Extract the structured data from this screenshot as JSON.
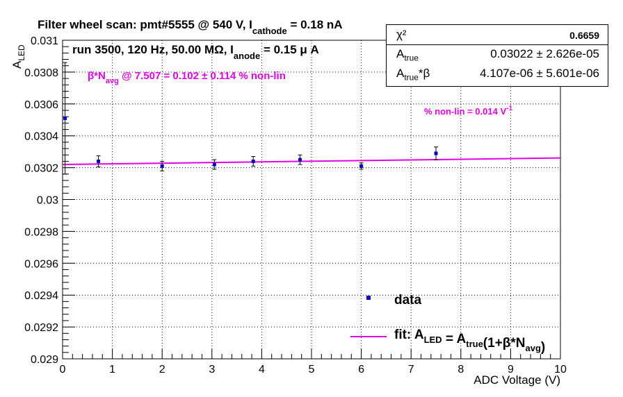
{
  "title": {
    "prefix": "Filter wheel scan: pmt#5555 @   540 V, I",
    "sub": "cathode",
    "suffix": " = 0.18 nA"
  },
  "run_info": {
    "prefix": "run 3500, 120 Hz, 50.00 MΩ, I",
    "sub": "anode",
    "suffix": " = 0.15 μ A"
  },
  "nonlin_note": {
    "prefix": "β*N",
    "sub": "avg",
    "suffix": " @ 7.507 = 0.102 ± 0.114 % non-lin"
  },
  "slope_note": {
    "prefix": "% non-lin = 0.014 V",
    "sup": "-1"
  },
  "stats": {
    "chi2_label": "χ²",
    "chi2_value": "0.6659",
    "atrue_label": "A",
    "atrue_sub": "true",
    "atrue_value": "0.03022 ± 2.626e-05",
    "beta_label": "A",
    "beta_sub": "true",
    "beta_suffix": "*β",
    "beta_value": "4.107e-06 ± 5.601e-06"
  },
  "colors": {
    "data": "#0000cc",
    "fit": "#e600e6",
    "note": "#e600e6",
    "grid": "#000000"
  },
  "chart_data": {
    "type": "scatter",
    "xlabel": "ADC Voltage (V)",
    "ylabel": "A",
    "ylabel_sub": "LED",
    "xlim": [
      0,
      10
    ],
    "ylim": [
      0.029,
      0.031
    ],
    "x_ticks": [
      "0",
      "1",
      "2",
      "3",
      "4",
      "5",
      "6",
      "7",
      "8",
      "9",
      "10"
    ],
    "y_ticks": [
      "0.029",
      "0.0292",
      "0.0294",
      "0.0296",
      "0.0298",
      "0.03",
      "0.0302",
      "0.0304",
      "0.0306",
      "0.0308",
      "0.031"
    ],
    "grid": true,
    "legend": {
      "position": "bottom-right",
      "data_label": "data",
      "fit_label": "fit: A_LED = A_true(1+β*N_avg)"
    },
    "series": [
      {
        "name": "data",
        "points": [
          {
            "x": 0.05,
            "y": 0.03051,
            "err": 0.00035
          },
          {
            "x": 0.72,
            "y": 0.03024,
            "err": 3.5e-05
          },
          {
            "x": 2.0,
            "y": 0.03021,
            "err": 3e-05
          },
          {
            "x": 3.05,
            "y": 0.03022,
            "err": 3e-05
          },
          {
            "x": 3.83,
            "y": 0.03024,
            "err": 3e-05
          },
          {
            "x": 4.77,
            "y": 0.03025,
            "err": 3e-05
          },
          {
            "x": 6.0,
            "y": 0.03021,
            "err": 2e-05
          },
          {
            "x": 7.5,
            "y": 0.03029,
            "err": 4e-05
          }
        ]
      },
      {
        "name": "fit",
        "line": {
          "x": [
            0,
            10
          ],
          "y": [
            0.03022,
            0.030261
          ]
        }
      }
    ]
  }
}
